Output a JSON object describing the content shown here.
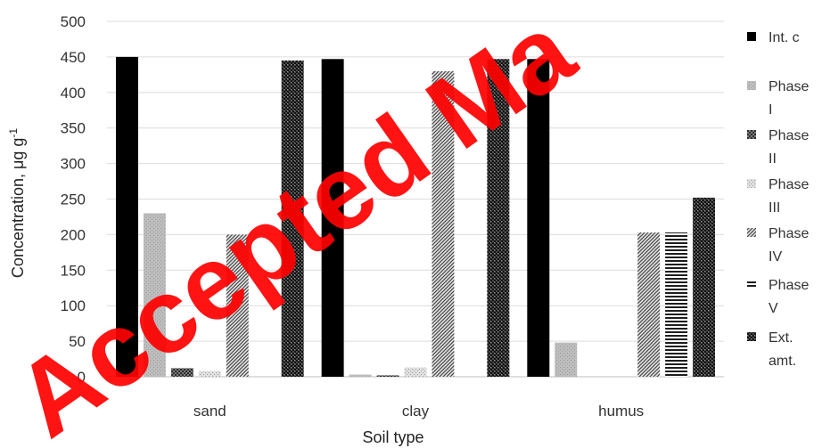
{
  "chart_data": {
    "type": "bar",
    "xlabel": "Soil type",
    "ylabel": "Concentration, μg g",
    "ylabel_superscript": "-1",
    "ylim": [
      0,
      500
    ],
    "yticks": [
      0,
      50,
      100,
      150,
      200,
      250,
      300,
      350,
      400,
      450,
      500
    ],
    "grid": true,
    "legend_position": "right",
    "categories": [
      "sand",
      "clay",
      "humus"
    ],
    "series": [
      {
        "name": "Int. c",
        "values": [
          450,
          447,
          447
        ],
        "pattern": "solid",
        "color": "#000000"
      },
      {
        "name": "Phase I",
        "values": [
          230,
          3,
          48
        ],
        "pattern": "light",
        "color": "#b5b5b5"
      },
      {
        "name": "Phase II",
        "values": [
          12,
          2,
          0
        ],
        "pattern": "dots",
        "color": "#555555"
      },
      {
        "name": "Phase III",
        "values": [
          8,
          13,
          0
        ],
        "pattern": "fine",
        "color": "#cfcfcf"
      },
      {
        "name": "Phase IV",
        "values": [
          200,
          430,
          203
        ],
        "pattern": "diagonal",
        "color": "#777777"
      },
      {
        "name": "Phase V",
        "values": [
          0,
          0,
          203
        ],
        "pattern": "horizontal",
        "color": "#333333"
      },
      {
        "name": "Ext. amt.",
        "values": [
          445,
          447,
          252
        ],
        "pattern": "dense",
        "color": "#2a2a2a"
      }
    ],
    "legend_labels": [
      [
        "Int. c"
      ],
      [
        "Phase",
        "I"
      ],
      [
        "Phase",
        "II"
      ],
      [
        "Phase",
        "III"
      ],
      [
        "Phase",
        "IV"
      ],
      [
        "Phase",
        "V"
      ],
      [
        "Ext.",
        "amt."
      ]
    ]
  },
  "watermark": {
    "text": "Accepted Ma",
    "color": "#ff0000"
  }
}
